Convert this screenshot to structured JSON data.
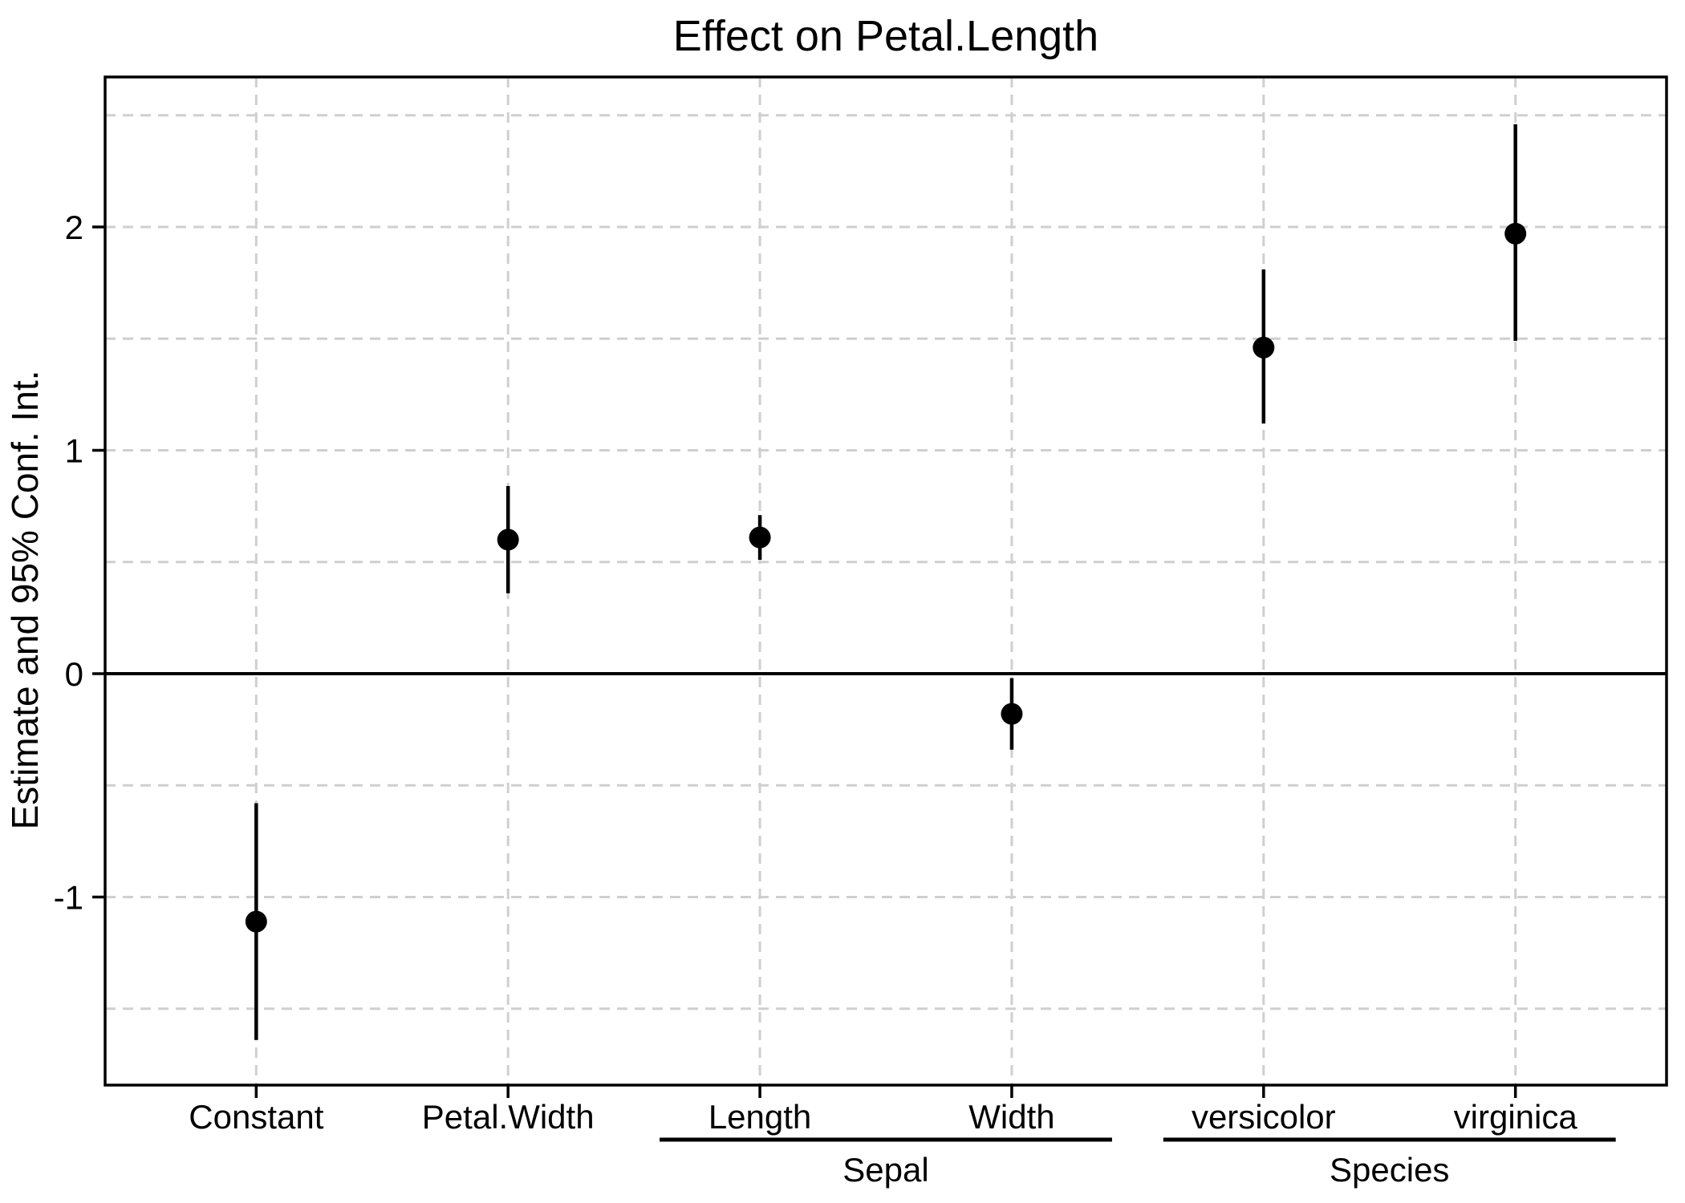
{
  "chart_data": {
    "type": "scatter",
    "variant": "dot-whisker coefficient plot",
    "title": "Effect on Petal.Length",
    "xlabel": "",
    "ylabel": "Estimate and 95% Conf. Int.",
    "categories": [
      "Constant",
      "Petal.Width",
      "Length",
      "Width",
      "versicolor",
      "virginica"
    ],
    "category_groups": [
      {
        "label": "Sepal",
        "first": "Length",
        "last": "Width"
      },
      {
        "label": "Species",
        "first": "versicolor",
        "last": "virginica"
      }
    ],
    "series": [
      {
        "name": "Estimate and 95% Conf. Int.",
        "marker": "filled-circle",
        "values": [
          {
            "category": "Constant",
            "estimate": -1.11,
            "ci_low": -1.64,
            "ci_high": -0.58
          },
          {
            "category": "Petal.Width",
            "estimate": 0.6,
            "ci_low": 0.36,
            "ci_high": 0.84
          },
          {
            "category": "Length",
            "estimate": 0.61,
            "ci_low": 0.51,
            "ci_high": 0.71
          },
          {
            "category": "Width",
            "estimate": -0.18,
            "ci_low": -0.34,
            "ci_high": -0.02
          },
          {
            "category": "versicolor",
            "estimate": 1.46,
            "ci_low": 1.12,
            "ci_high": 1.81
          },
          {
            "category": "virginica",
            "estimate": 1.97,
            "ci_low": 1.49,
            "ci_high": 2.46
          }
        ]
      }
    ],
    "ylim": [
      -1.85,
      2.67
    ],
    "ytick_values": [
      -1,
      0,
      1,
      2
    ],
    "ytick_labels": [
      "-1",
      "0",
      "1",
      "2"
    ],
    "gridline_values_y": [
      -1.5,
      -1,
      -0.5,
      0.5,
      1,
      1.5,
      2,
      2.5
    ],
    "reference_line_y": 0,
    "grid_style": "dashed",
    "legend_position": "none",
    "colors": {
      "marker": "#000000",
      "whisker": "#000000",
      "grid": "#CFCFCF",
      "axis": "#000000",
      "text": "#000000",
      "background": "#FFFFFF"
    }
  }
}
